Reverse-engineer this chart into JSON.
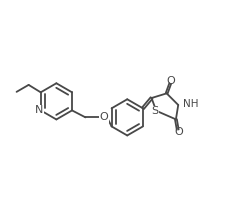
{
  "line_color": "#484848",
  "line_width": 1.3,
  "font_size": 7.5,
  "figsize": [
    2.38,
    2.12
  ],
  "dpi": 100,
  "xlim": [
    0,
    10
  ],
  "ylim": [
    0,
    8.9
  ]
}
